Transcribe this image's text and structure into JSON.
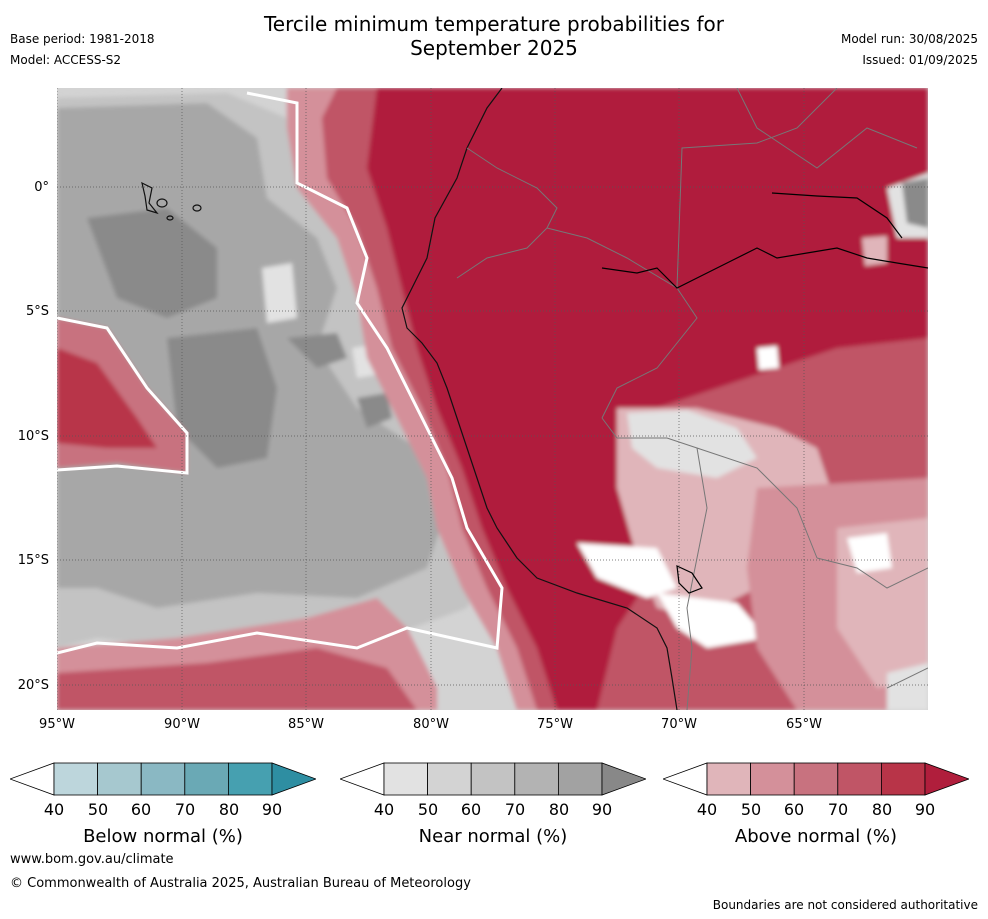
{
  "header": {
    "title_line1": "Tercile minimum temperature probabilities for",
    "title_line2": "September 2025",
    "base_period": "Base period: 1981-2018",
    "model": "Model: ACCESS-S2",
    "model_run": "Model run: 30/08/2025",
    "issued": "Issued: 01/09/2025"
  },
  "map": {
    "lat_ticks": [
      {
        "label": "0°",
        "lat": 0
      },
      {
        "label": "5°S",
        "lat": -5
      },
      {
        "label": "10°S",
        "lat": -10
      },
      {
        "label": "15°S",
        "lat": -15
      },
      {
        "label": "20°S",
        "lat": -20
      }
    ],
    "lon_ticks": [
      {
        "label": "95°W",
        "lon": -95
      },
      {
        "label": "90°W",
        "lon": -90
      },
      {
        "label": "85°W",
        "lon": -85
      },
      {
        "label": "80°W",
        "lon": -80
      },
      {
        "label": "75°W",
        "lon": -75
      },
      {
        "label": "70°W",
        "lon": -70
      },
      {
        "label": "65°W",
        "lon": -65
      }
    ]
  },
  "legends": [
    {
      "title": "Below normal (%)",
      "ticks": [
        "40",
        "50",
        "60",
        "70",
        "80",
        "90"
      ],
      "colors": [
        "#ffffff",
        "#bdd6dc",
        "#a6c8cf",
        "#8ab8c3",
        "#6aa9b5",
        "#46a0b0",
        "#2e8ea2"
      ]
    },
    {
      "title": "Near normal (%)",
      "ticks": [
        "40",
        "50",
        "60",
        "70",
        "80",
        "90"
      ],
      "colors": [
        "#ffffff",
        "#e2e2e2",
        "#d3d3d3",
        "#c3c3c3",
        "#b3b3b3",
        "#a2a2a2",
        "#888888"
      ]
    },
    {
      "title": "Above normal (%)",
      "ticks": [
        "40",
        "50",
        "60",
        "70",
        "80",
        "90"
      ],
      "colors": [
        "#ffffff",
        "#e0b5ba",
        "#d4909a",
        "#c8727f",
        "#c05566",
        "#b83448",
        "#b01e3c"
      ]
    }
  ],
  "footer": {
    "website": "www.bom.gov.au/climate",
    "copyright": "© Commonwealth of Australia 2025, Australian Bureau of Meteorology",
    "boundaries_note": "Boundaries are not considered authoritative"
  }
}
